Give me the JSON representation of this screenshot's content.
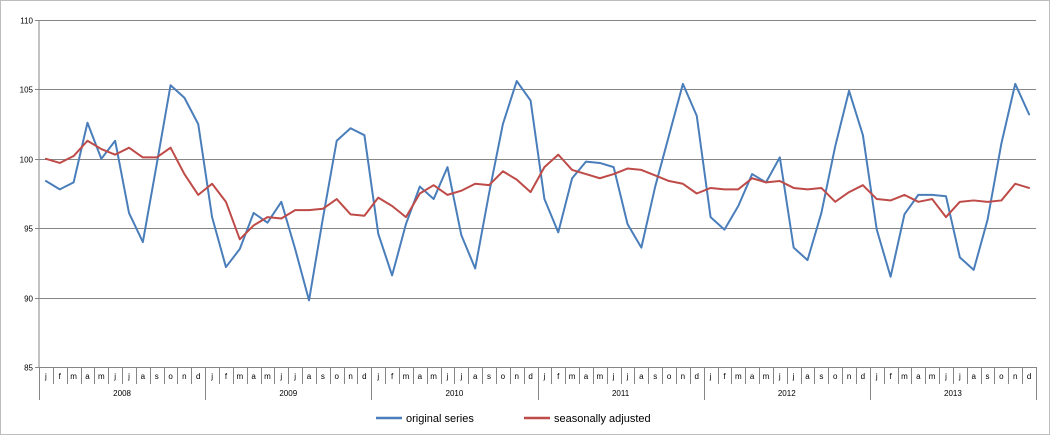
{
  "chart_data": {
    "type": "line",
    "ylim": [
      85,
      110
    ],
    "yticks": [
      85,
      90,
      95,
      100,
      105,
      110
    ],
    "grid": true,
    "legend_position": "bottom",
    "month_labels": [
      "j",
      "f",
      "m",
      "a",
      "m",
      "j",
      "j",
      "a",
      "s",
      "o",
      "n",
      "d"
    ],
    "years": [
      "2008",
      "2009",
      "2010",
      "2011",
      "2012",
      "2013"
    ],
    "series": [
      {
        "name": "original series",
        "color": "#4a7ebb",
        "values": [
          98.4,
          97.8,
          98.3,
          102.6,
          100.0,
          101.3,
          96.1,
          94.0,
          99.6,
          105.3,
          104.4,
          102.5,
          95.8,
          92.2,
          93.5,
          96.1,
          95.4,
          96.9,
          93.5,
          89.8,
          95.7,
          101.3,
          102.2,
          101.7,
          94.6,
          91.6,
          95.3,
          98.0,
          97.1,
          99.4,
          94.5,
          92.1,
          97.5,
          102.5,
          105.6,
          104.2,
          97.1,
          94.7,
          98.6,
          99.8,
          99.7,
          99.4,
          95.3,
          93.6,
          98.0,
          101.7,
          105.4,
          103.1,
          95.8,
          94.9,
          96.6,
          98.9,
          98.3,
          100.1,
          93.6,
          92.7,
          96.1,
          100.9,
          104.9,
          101.7,
          94.9,
          91.5,
          96.0,
          97.4,
          97.4,
          97.3,
          92.9,
          92.0,
          95.6,
          101.1,
          105.4,
          103.2
        ]
      },
      {
        "name": "seasonally adjusted",
        "color": "#be4b48",
        "values": [
          100.0,
          99.7,
          100.2,
          101.3,
          100.7,
          100.3,
          100.8,
          100.1,
          100.1,
          100.8,
          98.9,
          97.4,
          98.2,
          96.9,
          94.2,
          95.2,
          95.8,
          95.7,
          96.3,
          96.3,
          96.4,
          97.1,
          96.0,
          95.9,
          97.2,
          96.6,
          95.8,
          97.5,
          98.1,
          97.4,
          97.7,
          98.2,
          98.1,
          99.1,
          98.5,
          97.6,
          99.4,
          100.3,
          99.2,
          98.9,
          98.6,
          98.9,
          99.3,
          99.2,
          98.8,
          98.4,
          98.2,
          97.5,
          97.9,
          97.8,
          97.8,
          98.6,
          98.3,
          98.4,
          97.9,
          97.8,
          97.9,
          96.9,
          97.6,
          98.1,
          97.1,
          97.0,
          97.4,
          96.9,
          97.1,
          95.8,
          96.9,
          97.0,
          96.9,
          97.0,
          98.2,
          97.9
        ]
      }
    ]
  }
}
